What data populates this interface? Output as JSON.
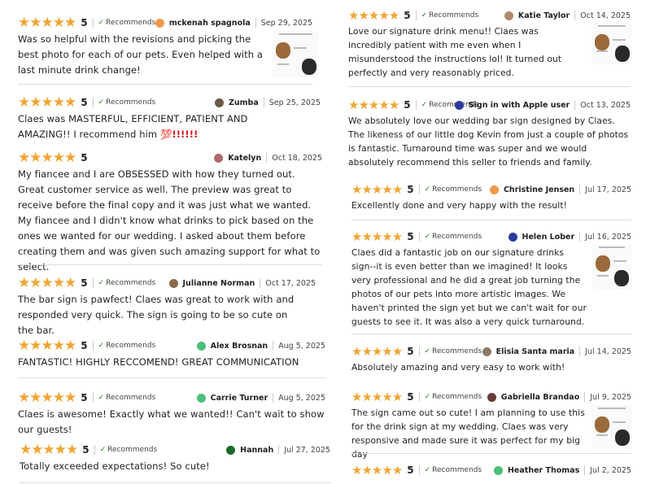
{
  "colors": {
    "star": "#f1a533",
    "check": "#2a7a2a",
    "divider": "#dddddd"
  },
  "recommends_label": "Recommends",
  "star_icon": "star-icon",
  "reviews": [
    {
      "rating": "5",
      "recommends": true,
      "user": "mckenah spagnola",
      "date": "Sep 29, 2025",
      "avatar_color": "#f29a4a",
      "text": "Was so helpful with the revisions and picking the best photo for each of our pets. Even helped with a last minute drink change!",
      "has_photo": true
    },
    {
      "rating": "5",
      "recommends": true,
      "user": "Zumba",
      "date": "Sep 25, 2025",
      "avatar_color": "#6b5a45",
      "text": "Claes was MASTERFUL, EFFICIENT, PATIENT AND AMAZING!! I recommend him ",
      "emphasis": "💯!!!!!!"
    },
    {
      "rating": "5",
      "recommends": false,
      "user": "Katelyn",
      "date": "Oct 18, 2025",
      "avatar_color": "#b06a6a",
      "text": "My fiancee and I are OBSESSED with how they turned out. Great customer service as well. The preview was great to receive before the final copy and it was just what we wanted. My fiancee and I didn't know what drinks to pick based on the ones we wanted for our wedding. I asked about them before creating them and was given such amazing support for what to select."
    },
    {
      "rating": "5",
      "recommends": true,
      "user": "Julianne Norman",
      "date": "Oct 17, 2025",
      "avatar_color": "#8a6a4a",
      "text": "The bar sign is pawfect! Claes was great to work with and responded very quick. The sign is going to be so cute on the bar."
    },
    {
      "rating": "5",
      "recommends": true,
      "user": "Alex Brosnan",
      "date": "Aug 5, 2025",
      "avatar_color": "#4cbf7a",
      "text": "FANTASTIC! HIGHLY RECCOMEND! GREAT COMMUNICATION"
    },
    {
      "rating": "5",
      "recommends": true,
      "user": "Carrie Turner",
      "date": "Aug 5, 2025",
      "avatar_color": "#4cbf7a",
      "text": "Claes is awesome! Exactly what we wanted!! Can't wait to show our guests!"
    },
    {
      "rating": "5",
      "recommends": true,
      "user": "Hannah",
      "date": "Jul 27, 2025",
      "avatar_color": "#1d6b2a",
      "text": "Totally exceeded expectations! So cute!"
    },
    {
      "rating": "5",
      "recommends": true,
      "user": "Katie Taylor",
      "date": "Oct 14, 2025",
      "avatar_color": "#b08a6a",
      "text": "Love our signature drink menu!! Claes was incredibly patient with me even when I misunderstood the instructions lol! It turned out perfectly and very reasonably priced.",
      "has_photo": true
    },
    {
      "rating": "5",
      "recommends": true,
      "user": "Sign in with Apple user",
      "date": "Oct 13, 2025",
      "avatar_color": "#2a3aa0",
      "text": "We absolutely love our wedding bar sign designed by Claes. The likeness of our little dog Kevin from just a couple of photos is fantastic. Turnaround time was super and we would absolutely recommend this seller to friends and family."
    },
    {
      "rating": "5",
      "recommends": true,
      "user": "Christine Jensen",
      "date": "Jul 17, 2025",
      "avatar_color": "#f29a4a",
      "text": "Excellently done and very happy with the result!"
    },
    {
      "rating": "5",
      "recommends": true,
      "user": "Helen Lober",
      "date": "Jul 16, 2025",
      "avatar_color": "#2a3aa0",
      "text": "Claes did a fantastic job on our signature drinks sign--it is even better than we imagined! It looks very professional and he did a great job turning the photos of our pets into more artistic images. We haven't printed the sign yet but we can't wait for our guests to see it. It was also a very quick turnaround.",
      "has_photo": true
    },
    {
      "rating": "5",
      "recommends": true,
      "user": "Elisia Santa maria",
      "date": "Jul 14, 2025",
      "avatar_color": "#8a7a6a",
      "text": "Absolutely amazing and very easy to work with!"
    },
    {
      "rating": "5",
      "recommends": true,
      "user": "Gabriella Brandao",
      "date": "Jul 9, 2025",
      "avatar_color": "#6a3a3a",
      "text": "The sign came out so cute! I am planning to use this for the drink sign at my wedding. Claes was very responsive and made sure it was perfect for my big day",
      "has_photo": true
    },
    {
      "rating": "5",
      "recommends": true,
      "user": "Heather Thomas",
      "date": "Jul 2, 2025",
      "avatar_color": "#4cbf7a",
      "text": ""
    }
  ]
}
